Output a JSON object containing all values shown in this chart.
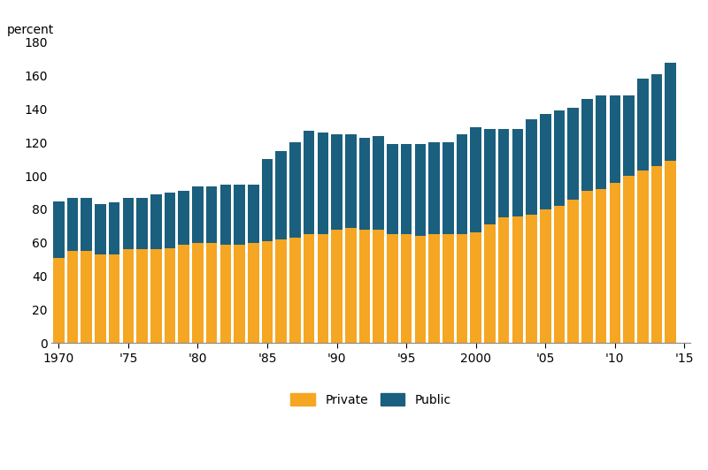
{
  "years": [
    1970,
    1971,
    1972,
    1973,
    1974,
    1975,
    1976,
    1977,
    1978,
    1979,
    1980,
    1981,
    1982,
    1983,
    1984,
    1985,
    1986,
    1987,
    1988,
    1989,
    1990,
    1991,
    1992,
    1993,
    1994,
    1995,
    1996,
    1997,
    1998,
    1999,
    2000,
    2001,
    2002,
    2003,
    2004,
    2005,
    2006,
    2007,
    2008,
    2009,
    2010,
    2011,
    2012,
    2013,
    2014
  ],
  "private": [
    51,
    55,
    55,
    53,
    53,
    56,
    56,
    56,
    57,
    59,
    60,
    60,
    59,
    59,
    60,
    61,
    62,
    63,
    65,
    65,
    68,
    69,
    68,
    68,
    65,
    65,
    64,
    65,
    65,
    65,
    66,
    71,
    75,
    76,
    77,
    80,
    82,
    86,
    91,
    92,
    96,
    100,
    103,
    106,
    109
  ],
  "public": [
    34,
    32,
    32,
    30,
    31,
    31,
    31,
    33,
    33,
    32,
    34,
    34,
    36,
    36,
    35,
    49,
    53,
    57,
    62,
    61,
    57,
    56,
    55,
    56,
    54,
    54,
    55,
    55,
    55,
    60,
    63,
    57,
    53,
    52,
    57,
    57,
    57,
    55,
    55,
    56,
    52,
    48,
    55,
    55,
    59
  ],
  "private_color": "#F5A623",
  "public_color": "#1B5F7E",
  "background_color": "#ffffff",
  "ylabel": "percent",
  "ylim": [
    0,
    180
  ],
  "yticks": [
    0,
    20,
    40,
    60,
    80,
    100,
    120,
    140,
    160,
    180
  ],
  "legend_labels": [
    "Private",
    "Public"
  ],
  "bar_width": 0.8,
  "xtick_years": [
    1970,
    1975,
    1980,
    1985,
    1990,
    1995,
    2000,
    2005,
    2010,
    2015
  ],
  "xtick_labels": [
    "1970",
    "'75",
    "'80",
    "'85",
    "'90",
    "'95",
    "2000",
    "'05",
    "'10",
    "'15"
  ]
}
